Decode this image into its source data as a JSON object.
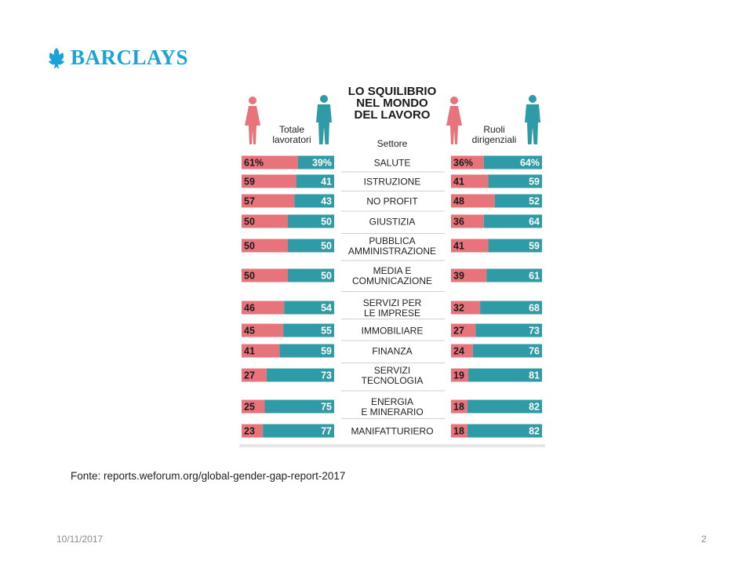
{
  "brand": {
    "name": "BARCLAYS",
    "logo_icon": "eagle-icon",
    "color": "#1aa3d9"
  },
  "chart_data": {
    "type": "bar",
    "title": [
      "LO SQUILIBRIO",
      "NEL MONDO",
      "DEL LAVORO"
    ],
    "left_group_label": [
      "Totale",
      "lavoratori"
    ],
    "middle_header": "Settore",
    "right_group_label": [
      "Ruoli",
      "dirigenziali"
    ],
    "categories": [
      [
        "SALUTE"
      ],
      [
        "ISTRUZIONE"
      ],
      [
        "NO PROFIT"
      ],
      [
        "GIUSTIZIA"
      ],
      [
        "PUBBLICA",
        "AMMINISTRAZIONE"
      ],
      [
        "MEDIA E",
        "COMUNICAZIONE"
      ],
      [
        "SERVIZI PER",
        "LE IMPRESE"
      ],
      [
        "IMMOBILIARE"
      ],
      [
        "FINANZA"
      ],
      [
        "SERVIZI",
        "TECNOLOGIA"
      ],
      [
        "ENERGIA",
        "E MINERARIO"
      ],
      [
        "MANIFATTURIERO"
      ]
    ],
    "series": [
      {
        "name": "Totale lavoratori - donne",
        "color": "#e8747b",
        "values": [
          61,
          59,
          57,
          50,
          50,
          50,
          46,
          45,
          41,
          27,
          25,
          23
        ],
        "labels": [
          "61%",
          "59",
          "57",
          "50",
          "50",
          "50",
          "46",
          "45",
          "41",
          "27",
          "25",
          "23"
        ]
      },
      {
        "name": "Totale lavoratori - uomini",
        "color": "#2f9ba6",
        "values": [
          39,
          41,
          43,
          50,
          50,
          50,
          54,
          55,
          59,
          73,
          75,
          77
        ],
        "labels": [
          "39%",
          "41",
          "43",
          "50",
          "50",
          "50",
          "54",
          "55",
          "59",
          "73",
          "75",
          "77"
        ]
      },
      {
        "name": "Ruoli dirigenziali - donne",
        "color": "#e8747b",
        "values": [
          36,
          41,
          48,
          36,
          41,
          39,
          32,
          27,
          24,
          19,
          18,
          18
        ],
        "labels": [
          "36%",
          "41",
          "48",
          "36",
          "41",
          "39",
          "32",
          "27",
          "24",
          "19",
          "18",
          "18"
        ]
      },
      {
        "name": "Ruoli dirigenziali - uomini",
        "color": "#2f9ba6",
        "values": [
          64,
          59,
          52,
          64,
          59,
          61,
          68,
          73,
          76,
          81,
          82,
          82
        ],
        "labels": [
          "64%",
          "59",
          "52",
          "64",
          "59",
          "61",
          "68",
          "73",
          "76",
          "81",
          "82",
          "82"
        ]
      }
    ],
    "icons": {
      "female": "woman-icon",
      "male": "man-icon"
    }
  },
  "footer": {
    "source": "Fonte: reports.weforum.org/global-gender-gap-report-2017",
    "date": "10/11/2017",
    "page": "2"
  }
}
